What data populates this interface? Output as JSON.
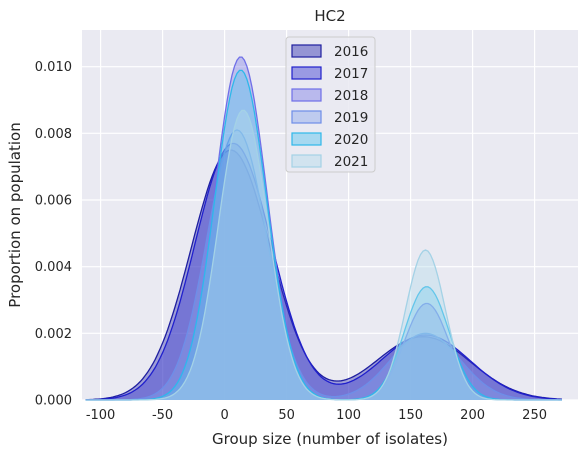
{
  "chart_data": {
    "type": "area",
    "title": "HC2",
    "xlabel": "Group size (number of isolates)",
    "ylabel": "Proportion on population",
    "xlim": [
      -115,
      285
    ],
    "ylim": [
      0,
      0.0111
    ],
    "xticks": [
      -100,
      -50,
      0,
      50,
      100,
      150,
      200,
      250
    ],
    "yticks": [
      0,
      0.002,
      0.004,
      0.006,
      0.008,
      0.01
    ],
    "ytick_labels": [
      "0.000",
      "0.002",
      "0.004",
      "0.006",
      "0.008",
      "0.010"
    ],
    "grid": true,
    "legend_position": "top-center",
    "series": [
      {
        "name": "2016",
        "color": "#1e1ea0",
        "fill": "#2e2eb0",
        "peaks": [
          {
            "center": 5,
            "height": 0.0075,
            "sd": 32
          },
          {
            "center": 160,
            "height": 0.0019,
            "sd": 38
          }
        ]
      },
      {
        "name": "2017",
        "color": "#2020cc",
        "fill": "#3a3ad0",
        "peaks": [
          {
            "center": 7,
            "height": 0.0077,
            "sd": 31
          },
          {
            "center": 162,
            "height": 0.00195,
            "sd": 36
          }
        ]
      },
      {
        "name": "2018",
        "color": "#6f6fe8",
        "fill": "#7e7ee6",
        "peaks": [
          {
            "center": 13,
            "height": 0.0103,
            "sd": 21
          },
          {
            "center": 163,
            "height": 0.0029,
            "sd": 18
          }
        ]
      },
      {
        "name": "2019",
        "color": "#6d8ee8",
        "fill": "#8aa6ec",
        "peaks": [
          {
            "center": 10,
            "height": 0.0081,
            "sd": 24
          },
          {
            "center": 162,
            "height": 0.002,
            "sd": 28
          }
        ]
      },
      {
        "name": "2020",
        "color": "#2eb8ea",
        "fill": "#55c4ee",
        "peaks": [
          {
            "center": 13,
            "height": 0.0099,
            "sd": 21
          },
          {
            "center": 163,
            "height": 0.0034,
            "sd": 18
          }
        ]
      },
      {
        "name": "2021",
        "color": "#a4d2e6",
        "fill": "#b4dbeb",
        "peaks": [
          {
            "center": 15,
            "height": 0.0087,
            "sd": 20
          },
          {
            "center": 162,
            "height": 0.0045,
            "sd": 16
          }
        ]
      }
    ]
  }
}
